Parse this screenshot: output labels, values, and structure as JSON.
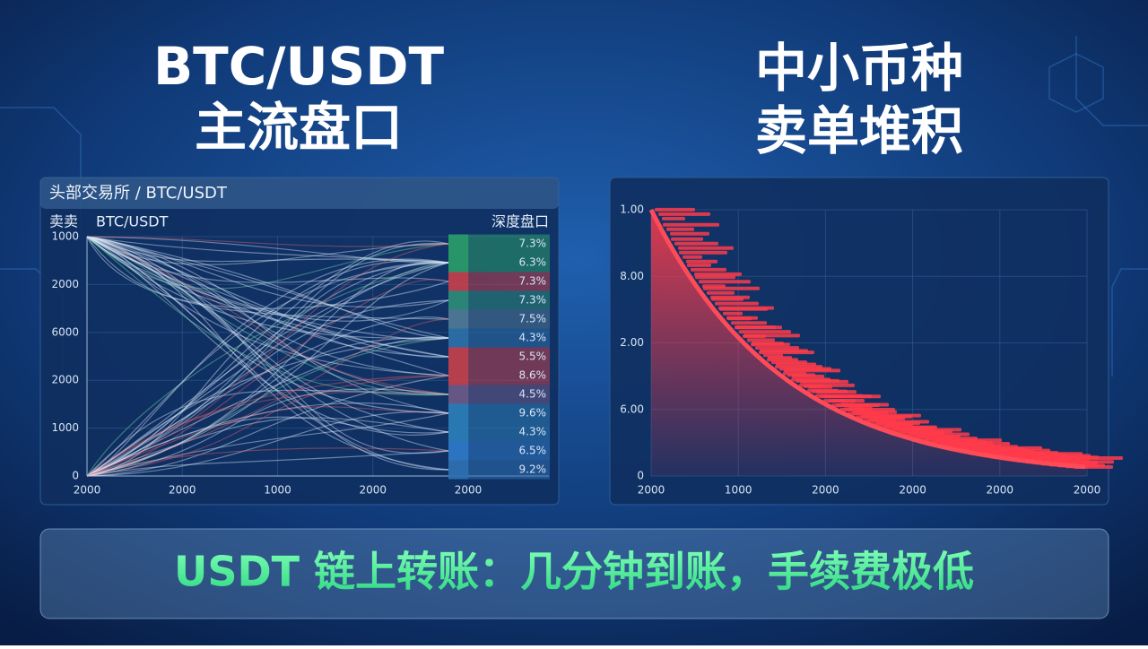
{
  "left_heading": [
    "BTC/USDT",
    "主流盘口"
  ],
  "right_heading": [
    "中小币种",
    "卖单堆积"
  ],
  "left_panel": {
    "header": "头部交易所 / BTC/USDT",
    "y_title": "卖卖",
    "subtitle": "BTC/USDT",
    "depth_title": "深度盘口",
    "y_labels": [
      1000,
      2000,
      6000,
      2000,
      1000,
      0
    ],
    "x_labels": [
      2000,
      2000,
      1000,
      2000,
      2000
    ],
    "depth_rows": [
      "7.3%",
      "6.3%",
      "7.3%",
      "7.3%",
      "7.5%",
      "4.3%",
      "5.5%",
      "8.6%",
      "4.5%",
      "9.6%",
      "4.3%",
      "6.5%",
      "9.2%"
    ]
  },
  "right_panel": {
    "y_labels": [
      "1.00",
      "8.00",
      "2.00",
      "6.00",
      0
    ],
    "x_labels": [
      2000,
      1000,
      2000,
      2000,
      2000,
      2000
    ]
  },
  "banner": "USDT 链上转账：几分钟到账，手续费极低"
}
